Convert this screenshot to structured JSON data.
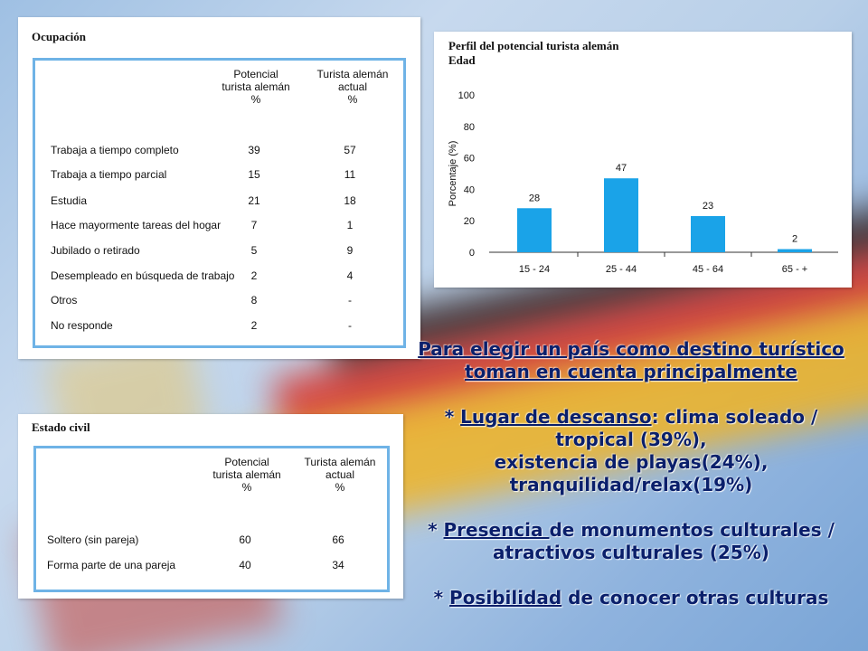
{
  "occupation_table": {
    "title": "Ocupación",
    "col1_header": [
      "Potencial",
      "turista alemán",
      "%"
    ],
    "col2_header": [
      "Turista alemán",
      "actual",
      "%"
    ],
    "rows": [
      {
        "label": "Trabaja a tiempo completo",
        "potential": "39",
        "current": "57"
      },
      {
        "label": "Trabaja a tiempo parcial",
        "potential": "15",
        "current": "11"
      },
      {
        "label": "Estudia",
        "potential": "21",
        "current": "18"
      },
      {
        "label": "Hace mayormente tareas del hogar",
        "potential": "7",
        "current": "1"
      },
      {
        "label": "Jubilado o retirado",
        "potential": "5",
        "current": "9"
      },
      {
        "label": "Desempleado en búsqueda de trabajo",
        "potential": "2",
        "current": "4"
      },
      {
        "label": "Otros",
        "potential": "8",
        "current": "-"
      },
      {
        "label": "No responde",
        "potential": "2",
        "current": "-"
      }
    ]
  },
  "civil_table": {
    "title": "Estado civil",
    "col1_header": [
      "Potencial",
      "turista alemán",
      "%"
    ],
    "col2_header": [
      "Turista alemán",
      "actual",
      "%"
    ],
    "rows": [
      {
        "label": "Soltero (sin pareja)",
        "potential": "60",
        "current": "66"
      },
      {
        "label": "Forma parte de una pareja",
        "potential": "40",
        "current": "34"
      }
    ]
  },
  "chart_data": {
    "type": "bar",
    "title": "Perfil del potencial turista alemán",
    "subtitle": "Edad",
    "ylabel": "Porcentaje (%)",
    "xlabel": "",
    "categories": [
      "15 - 24",
      "25 - 44",
      "45 - 64",
      "65 - +"
    ],
    "values": [
      28,
      47,
      23,
      2
    ],
    "yticks": [
      0,
      20,
      40,
      60,
      80,
      100
    ],
    "ylim": [
      0,
      100
    ],
    "grid": false,
    "bar_color": "#1aa3e8"
  },
  "text": {
    "intro_line1": "Para elegir un país como destino turístico",
    "intro_line2": "toman en cuenta principalmente",
    "b1_star": "* ",
    "b1_key": "Lugar de descanso",
    "b1_rest": ": clima soleado /",
    "b1_line2": "tropical (39%),",
    "b1_line3": "existencia de playas(24%),",
    "b1_line4": "tranquilidad/relax(19%)",
    "b2_star": "* ",
    "b2_key": "Presencia ",
    "b2_rest": "de monumentos culturales /",
    "b2_line2": "atractivos culturales (25%)",
    "b3_star": "* ",
    "b3_key": "Posibilidad",
    "b3_rest": " de conocer otras culturas"
  }
}
